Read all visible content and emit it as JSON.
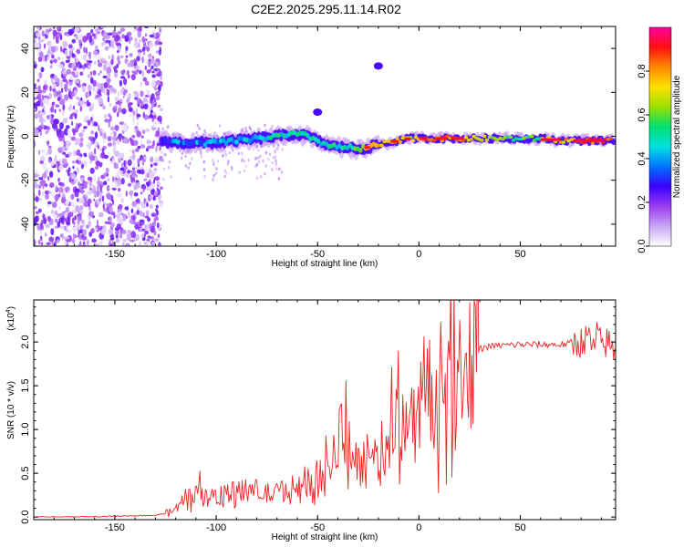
{
  "chart_data": [
    {
      "type": "heatmap",
      "title": "C2E2.2025.295.11.14.R02",
      "xlabel": "Height of straight line (km)",
      "ylabel": "Frequency (Hz)",
      "xlim": [
        -190,
        97
      ],
      "ylim": [
        -50,
        50
      ],
      "x_ticks": [
        -150,
        -100,
        -50,
        0,
        50
      ],
      "y_ticks": [
        -40,
        -20,
        0,
        20,
        40
      ],
      "colorbar": {
        "label": "Normalized spectral amplitude",
        "range": [
          0,
          1
        ],
        "ticks": [
          0.0,
          0.2,
          0.4,
          0.6,
          0.8
        ],
        "colors": [
          "#ffffff",
          "#c9a6f5",
          "#9b3df0",
          "#3a00ff",
          "#0074ff",
          "#00e0e0",
          "#00e070",
          "#9be000",
          "#ffe000",
          "#ff8800",
          "#ff1010",
          "#ff00a0"
        ]
      },
      "noise_region": {
        "x_range": [
          -190,
          -127
        ],
        "description_amplitude": 0.3
      },
      "ridge": {
        "x": [
          -127,
          -120,
          -110,
          -100,
          -90,
          -80,
          -70,
          -60,
          -55,
          -50,
          -45,
          -40,
          -35,
          -30,
          -25,
          -20,
          -15,
          -10,
          -5,
          0,
          10,
          20,
          30,
          40,
          50,
          60,
          70,
          80,
          90,
          96
        ],
        "freq": [
          -2,
          -3,
          -3,
          -3,
          -2,
          -1,
          0,
          1,
          0,
          -2,
          -4,
          -5,
          -5,
          -6,
          -5,
          -4,
          -3,
          -2,
          -1,
          -1,
          -1,
          -1,
          -1,
          -1,
          -1,
          -1,
          -2,
          -2,
          -2,
          -2
        ],
        "amplitude": [
          0.3,
          0.35,
          0.4,
          0.4,
          0.45,
          0.45,
          0.5,
          0.5,
          0.5,
          0.45,
          0.45,
          0.5,
          0.5,
          0.55,
          0.75,
          0.8,
          0.8,
          0.75,
          0.7,
          0.75,
          0.85,
          0.8,
          0.7,
          0.6,
          0.55,
          0.6,
          0.75,
          0.85,
          0.9,
          0.9
        ]
      },
      "spots": [
        {
          "x": -50,
          "freq": 11
        },
        {
          "x": -20,
          "freq": 32
        }
      ]
    },
    {
      "type": "line",
      "title": "",
      "xlabel": "Height of straight line (km)",
      "ylabel": "SNR (10 * v/v)",
      "scale_note": "(x10",
      "scale_exp": "4",
      "xlim": [
        -190,
        97
      ],
      "ylim": [
        -0.03,
        2.48
      ],
      "x_ticks": [
        -150,
        -100,
        -50,
        0,
        50
      ],
      "y_ticks": [
        0.0,
        0.5,
        1.0,
        1.5,
        2.0
      ],
      "y_tick_labels": [
        "0.0",
        "0.5",
        "1.0",
        "1.5",
        "2.0"
      ],
      "series": [
        {
          "name": "SNR",
          "color": "#ee2222",
          "x": [
            -190,
            -170,
            -150,
            -130,
            -123,
            -118,
            -116,
            -112,
            -108,
            -104,
            -100,
            -96,
            -92,
            -88,
            -84,
            -80,
            -76,
            -72,
            -68,
            -64,
            -60,
            -56,
            -52,
            -48,
            -44,
            -40,
            -37,
            -34,
            -30,
            -26,
            -22,
            -18,
            -15,
            -12,
            -8,
            -4,
            0,
            3,
            6,
            10,
            14,
            18,
            22,
            26,
            30,
            35,
            40,
            50,
            60,
            70,
            75,
            80,
            84,
            86,
            88,
            90,
            93,
            96
          ],
          "y": [
            0.0,
            0.0,
            0.01,
            0.02,
            0.05,
            0.12,
            0.25,
            0.22,
            0.28,
            0.2,
            0.3,
            0.25,
            0.35,
            0.28,
            0.32,
            0.3,
            0.28,
            0.25,
            0.3,
            0.32,
            0.35,
            0.4,
            0.45,
            0.5,
            0.6,
            0.75,
            1.2,
            0.9,
            0.6,
            0.7,
            0.6,
            0.8,
            0.9,
            1.0,
            1.1,
            1.2,
            1.35,
            1.5,
            1.4,
            1.3,
            1.55,
            1.6,
            1.75,
            1.85,
            1.92,
            1.95,
            1.96,
            1.97,
            1.97,
            1.97,
            1.98,
            2.0,
            2.05,
            1.9,
            2.1,
            1.95,
            2.0,
            1.9
          ]
        }
      ]
    }
  ]
}
